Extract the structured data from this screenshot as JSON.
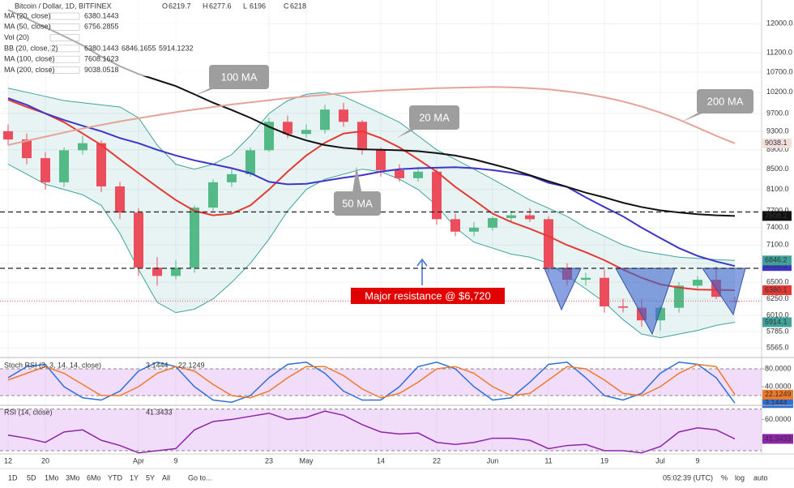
{
  "chart_data": [
    {
      "type": "candlestick",
      "title": "Bitcoin / Dollar, 1D, BITFINEX",
      "categories": [
        "12",
        null,
        "20",
        null,
        null,
        null,
        null,
        "Apr",
        null,
        "9",
        null,
        null,
        null,
        null,
        "23",
        null,
        "May",
        null,
        null,
        null,
        "14",
        null,
        null,
        "22",
        null,
        null,
        "Jun",
        null,
        null,
        "11",
        null,
        null,
        "19",
        null,
        null,
        "Jul",
        null,
        "9",
        null,
        null
      ],
      "ohlc_prefixes": [
        "O",
        "H",
        "L",
        "C"
      ],
      "open": [
        9300,
        9120,
        8725,
        8240,
        8890,
        9040,
        8160,
        7670,
        6730,
        6600,
        6730,
        7760,
        8240,
        8400,
        8890,
        9510,
        9240,
        9330,
        9790,
        9510,
        8890,
        8480,
        8320,
        8450,
        7550,
        7330,
        7400,
        7570,
        7620,
        7550,
        6730,
        6540,
        6570,
        6140,
        6120,
        5940,
        6120,
        6450,
        6540,
        6219.7
      ],
      "high": [
        9450,
        9250,
        8850,
        8950,
        9200,
        9100,
        8250,
        7750,
        6900,
        6850,
        7800,
        8300,
        8500,
        8950,
        9600,
        9650,
        9450,
        9900,
        9950,
        9550,
        8950,
        8600,
        8550,
        8500,
        7650,
        7500,
        7600,
        7700,
        7750,
        7600,
        6800,
        6650,
        6700,
        6250,
        6250,
        6150,
        6500,
        6600,
        6750,
        6277.6
      ],
      "low": [
        9000,
        8600,
        8100,
        8150,
        8800,
        8050,
        7550,
        6600,
        6450,
        6550,
        6650,
        7700,
        8150,
        8350,
        8850,
        9150,
        9150,
        9250,
        9400,
        8800,
        8350,
        8250,
        8250,
        7450,
        7250,
        7250,
        7350,
        7500,
        7500,
        6650,
        6450,
        6450,
        6050,
        6050,
        5850,
        5800,
        6050,
        6400,
        6250,
        6196.0
      ],
      "close": [
        9120,
        8725,
        8240,
        8890,
        9040,
        8160,
        7670,
        6730,
        6600,
        6730,
        7760,
        8240,
        8400,
        8890,
        9510,
        9240,
        9330,
        9790,
        9510,
        8890,
        8480,
        8320,
        8450,
        7550,
        7330,
        7400,
        7570,
        7620,
        7550,
        6730,
        6540,
        6570,
        6140,
        6120,
        5940,
        6120,
        6450,
        6540,
        6280,
        6218.0
      ],
      "up_color": "#53b987",
      "down_color": "#eb4d5c",
      "ylim": [
        5450,
        12500
      ],
      "log_scale": true,
      "grid": true,
      "yticks": [
        {
          "value": 12000,
          "label": "12000.0"
        },
        {
          "value": 11200,
          "label": "11200.0"
        },
        {
          "value": 10700,
          "label": "10700.0"
        },
        {
          "value": 10200,
          "label": "10200.0"
        },
        {
          "value": 9700,
          "label": "9700.0"
        },
        {
          "value": 9300,
          "label": "9300.0"
        },
        {
          "value": 8900,
          "label": "8900.0"
        },
        {
          "value": 8500,
          "label": "8500.0"
        },
        {
          "value": 8100,
          "label": "8100.0"
        },
        {
          "value": 7700,
          "label": "7700.0"
        },
        {
          "value": 7400,
          "label": "7400.0"
        },
        {
          "value": 7100,
          "label": "7100.0"
        },
        {
          "value": 6800,
          "label": "6800.0"
        },
        {
          "value": 6500,
          "label": "6500.0"
        },
        {
          "value": 6250,
          "label": "6250.0"
        },
        {
          "value": 6010,
          "label": "6010.0"
        },
        {
          "value": 5785,
          "label": "5785.0"
        },
        {
          "value": 5565,
          "label": "5565.0"
        }
      ],
      "series": [
        {
          "name": "MA (20, close)",
          "color": "#e53935",
          "badge_label": "6380.1",
          "values": [
            10020,
            9850,
            9700,
            9500,
            9250,
            9000,
            8700,
            8420,
            8150,
            7900,
            7700,
            7620,
            7650,
            7800,
            8100,
            8450,
            8780,
            9050,
            9250,
            9300,
            9150,
            8950,
            8700,
            8450,
            8150,
            7900,
            7650,
            7500,
            7380,
            7250,
            7100,
            6980,
            6850,
            6700,
            6570,
            6470,
            6420,
            6390,
            6385,
            6380.1443
          ]
        },
        {
          "name": "MA (50, close)",
          "color": "#3d35c8",
          "badge_label": "6756.3",
          "values": [
            10060,
            9900,
            9700,
            9550,
            9420,
            9300,
            9150,
            9040,
            8900,
            8780,
            8680,
            8600,
            8520,
            8420,
            8250,
            8200,
            8210,
            8270,
            8330,
            8380,
            8450,
            8500,
            8520,
            8530,
            8540,
            8520,
            8480,
            8430,
            8370,
            8230,
            8150,
            7950,
            7770,
            7600,
            7400,
            7220,
            7050,
            6920,
            6830,
            6756.2855
          ]
        },
        {
          "name": "MA (100, close)",
          "color": "#111111",
          "badge_label": "7608.2",
          "values": [
            12400,
            12150,
            11900,
            11650,
            11400,
            11100,
            10850,
            10650,
            10500,
            10350,
            10150,
            9950,
            9780,
            9600,
            9400,
            9230,
            9100,
            9000,
            8940,
            8910,
            8900,
            8890,
            8870,
            8830,
            8780,
            8700,
            8600,
            8500,
            8380,
            8260,
            8150,
            8040,
            7950,
            7850,
            7770,
            7710,
            7670,
            7640,
            7620,
            7608.1623
          ]
        },
        {
          "name": "MA (200, close)",
          "color": "#e6a39a",
          "badge_label": "9038.1",
          "values": [
            9000,
            9090,
            9180,
            9270,
            9360,
            9440,
            9520,
            9590,
            9660,
            9730,
            9790,
            9850,
            9910,
            9960,
            10010,
            10060,
            10100,
            10140,
            10180,
            10210,
            10240,
            10260,
            10280,
            10300,
            10310,
            10320,
            10330,
            10320,
            10300,
            10270,
            10220,
            10160,
            10080,
            9980,
            9860,
            9720,
            9560,
            9380,
            9200,
            9038.0518
          ]
        }
      ],
      "volume_legend": "Vol (20)",
      "bands": {
        "name": "BB (20, close, 2)",
        "color": "#3fa39b",
        "badge_labels": [
          "6846.2",
          "5914.1"
        ],
        "upper": [
          10300,
          10200,
          10100,
          10000,
          9950,
          9900,
          9850,
          9600,
          9000,
          8600,
          8500,
          8600,
          8800,
          9200,
          9700,
          10000,
          10150,
          10200,
          10100,
          9900,
          9700,
          9500,
          9200,
          8900,
          8700,
          8500,
          8300,
          8100,
          7900,
          7750,
          7600,
          7400,
          7250,
          7100,
          7000,
          6950,
          6900,
          6880,
          6860,
          6846.1655
        ],
        "lower": [
          8600,
          8400,
          8200,
          8100,
          8000,
          7800,
          7300,
          6700,
          6200,
          6050,
          6100,
          6250,
          6500,
          6800,
          7200,
          7700,
          8100,
          8300,
          8400,
          8500,
          8450,
          8300,
          8100,
          7800,
          7400,
          7150,
          7050,
          6950,
          6900,
          6800,
          6600,
          6400,
          6200,
          5950,
          5750,
          5700,
          5750,
          5800,
          5870,
          5914.1232
        ]
      },
      "levels": [
        {
          "value": 7680
        },
        {
          "value": 6720,
          "label": "Major resistance @ $6,720"
        }
      ],
      "annotations": [
        "100 MA",
        "20 MA",
        "50 MA",
        "200 MA"
      ]
    },
    {
      "type": "line",
      "title": "Stoch RSI (3, 3, 14, 14, close)",
      "ylim": [
        0,
        100
      ],
      "yticks": [
        {
          "value": 80,
          "label": "80.0000"
        },
        {
          "value": 40,
          "label": "40.0000"
        }
      ],
      "band": [
        80,
        20
      ],
      "series": [
        {
          "color": "#2f6fd6",
          "values": [
            60,
            85,
            90,
            40,
            15,
            10,
            30,
            75,
            95,
            85,
            40,
            10,
            5,
            20,
            60,
            90,
            95,
            70,
            30,
            10,
            10,
            40,
            85,
            95,
            80,
            40,
            10,
            15,
            50,
            90,
            95,
            60,
            20,
            10,
            25,
            70,
            95,
            90,
            60,
            3.1444
          ]
        },
        {
          "color": "#f07a2a",
          "values": [
            55,
            70,
            85,
            70,
            45,
            20,
            20,
            40,
            70,
            85,
            75,
            45,
            20,
            15,
            30,
            60,
            85,
            85,
            65,
            35,
            15,
            25,
            50,
            80,
            85,
            70,
            40,
            20,
            25,
            55,
            85,
            80,
            55,
            25,
            20,
            40,
            70,
            90,
            85,
            22.1249
          ]
        }
      ]
    },
    {
      "type": "line",
      "title": "RSI (14, close)",
      "ylim": [
        30,
        72
      ],
      "yticks": [
        {
          "value": 60,
          "label": "60.0000"
        },
        {
          "value": 40,
          "label": "40.0000"
        }
      ],
      "band": [
        70,
        30
      ],
      "series": [
        {
          "color": "#8e24aa",
          "values": [
            45,
            42,
            38,
            48,
            50,
            40,
            35,
            28,
            30,
            32,
            50,
            58,
            60,
            63,
            66,
            60,
            62,
            68,
            64,
            55,
            48,
            46,
            47,
            38,
            36,
            38,
            42,
            42,
            40,
            32,
            35,
            36,
            30,
            30,
            28,
            34,
            48,
            52,
            50,
            41.3433
          ]
        }
      ]
    }
  ],
  "toolbar": {
    "ranges": [
      "1D",
      "5D",
      "1Mo",
      "3Mo",
      "6Mo",
      "YTD",
      "1Y",
      "5Y",
      "All"
    ],
    "goto": "Go to...",
    "time": "05:02:39 (UTC)",
    "options": [
      "%",
      "log",
      "auto"
    ]
  }
}
